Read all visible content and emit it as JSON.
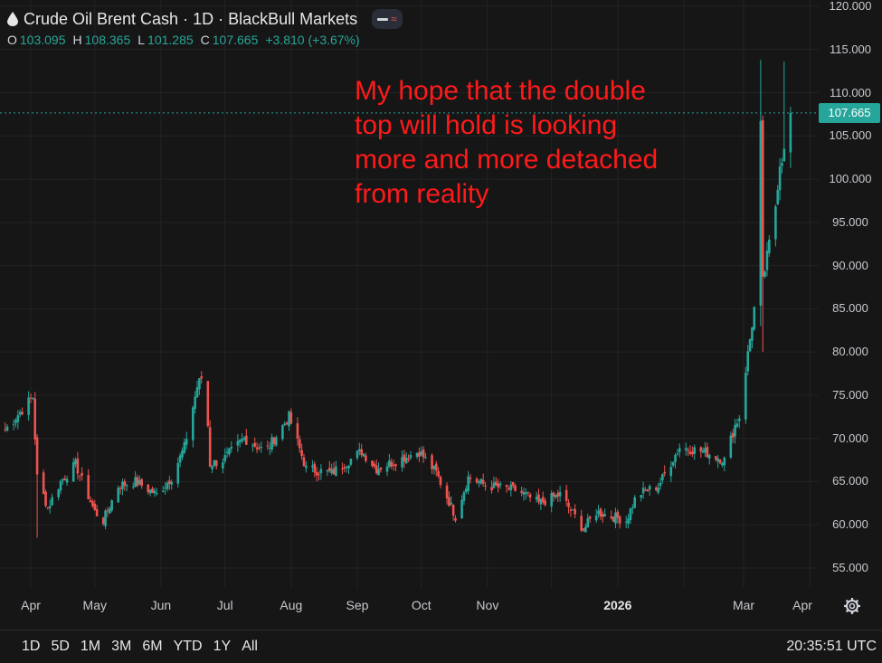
{
  "header": {
    "symbol_title": "Crude Oil Brent Cash · 1D · BlackBull Markets",
    "symbol_icon": "drop-icon",
    "pill_icons": [
      "minus-icon",
      "wave-icon"
    ],
    "ohlc": {
      "o_label": "O",
      "o_value": "103.095",
      "h_label": "H",
      "h_value": "108.365",
      "l_label": "L",
      "l_value": "101.285",
      "c_label": "C",
      "c_value": "107.665",
      "change": "+3.810 (+3.67%)"
    },
    "value_color": "#26a69a"
  },
  "annotation": {
    "lines": [
      "My hope that the double",
      "top will hold is looking",
      "more and more detached",
      "from reality"
    ],
    "color": "#ff1a1a"
  },
  "price_axis": {
    "labels": [
      "120.000",
      "115.000",
      "110.000",
      "105.000",
      "100.000",
      "95.000",
      "90.000",
      "85.000",
      "80.000",
      "75.000",
      "70.000",
      "65.000",
      "60.000",
      "55.000"
    ],
    "last_price": "107.665",
    "last_price_color": "#26a69a"
  },
  "time_axis": {
    "labels": [
      "Apr",
      "May",
      "Jun",
      "Jul",
      "Aug",
      "Sep",
      "Oct",
      "Nov",
      "2026",
      "Mar",
      "Apr"
    ]
  },
  "bottom": {
    "ranges": [
      "1D",
      "5D",
      "1M",
      "3M",
      "6M",
      "YTD",
      "1Y",
      "All"
    ],
    "clock": "20:35:51 UTC",
    "settings_icon": "settings-icon"
  },
  "chart_data": {
    "type": "candlestick",
    "title": "Crude Oil Brent Cash · 1D · BlackBull Markets",
    "ylim": [
      52,
      121
    ],
    "up_color": "#26a69a",
    "down_color": "#ef5350",
    "y_ticks": [
      55,
      60,
      65,
      70,
      75,
      80,
      85,
      90,
      95,
      100,
      105,
      110,
      115,
      120
    ],
    "x_ticks": [
      "Apr",
      "May",
      "Jun",
      "Jul",
      "Aug",
      "Sep",
      "Oct",
      "Nov",
      "2026",
      "Mar",
      "Apr"
    ],
    "anchors_close": [
      [
        "2025-03-20",
        71.0
      ],
      [
        "2025-04-02",
        74.8
      ],
      [
        "2025-04-04",
        65.5
      ],
      [
        "2025-04-09",
        62.0
      ],
      [
        "2025-04-15",
        65.0
      ],
      [
        "2025-04-22",
        67.0
      ],
      [
        "2025-05-01",
        61.5
      ],
      [
        "2025-05-05",
        60.5
      ],
      [
        "2025-05-12",
        64.5
      ],
      [
        "2025-05-20",
        65.0
      ],
      [
        "2025-05-30",
        63.5
      ],
      [
        "2025-06-06",
        65.5
      ],
      [
        "2025-06-12",
        69.0
      ],
      [
        "2025-06-18",
        76.0
      ],
      [
        "2025-06-20",
        77.0
      ],
      [
        "2025-06-23",
        71.5
      ],
      [
        "2025-06-24",
        67.0
      ],
      [
        "2025-06-30",
        67.5
      ],
      [
        "2025-07-10",
        70.0
      ],
      [
        "2025-07-20",
        68.5
      ],
      [
        "2025-07-31",
        72.5
      ],
      [
        "2025-08-08",
        66.5
      ],
      [
        "2025-08-20",
        66.0
      ],
      [
        "2025-09-03",
        68.5
      ],
      [
        "2025-09-10",
        66.5
      ],
      [
        "2025-09-20",
        67.5
      ],
      [
        "2025-09-30",
        68.5
      ],
      [
        "2025-10-08",
        66.0
      ],
      [
        "2025-10-17",
        61.0
      ],
      [
        "2025-10-23",
        65.5
      ],
      [
        "2025-11-01",
        64.5
      ],
      [
        "2025-11-15",
        64.0
      ],
      [
        "2025-11-25",
        62.5
      ],
      [
        "2025-12-05",
        63.5
      ],
      [
        "2025-12-16",
        59.5
      ],
      [
        "2025-12-22",
        61.5
      ],
      [
        "2026-01-05",
        60.5
      ],
      [
        "2026-01-10",
        63.5
      ],
      [
        "2026-01-20",
        64.5
      ],
      [
        "2026-01-30",
        69.0
      ],
      [
        "2026-02-10",
        68.5
      ],
      [
        "2026-02-20",
        67.5
      ],
      [
        "2026-02-25",
        71.5
      ],
      [
        "2026-02-27",
        72.5
      ],
      [
        "2026-03-02",
        78.0
      ],
      [
        "2026-03-06",
        85.0
      ],
      [
        "2026-03-09",
        106.0
      ],
      [
        "2026-03-10",
        88.0
      ],
      [
        "2026-03-12",
        91.0
      ],
      [
        "2026-03-16",
        97.0
      ],
      [
        "2026-03-18",
        102.0
      ],
      [
        "2026-03-20",
        103.1
      ],
      [
        "2026-03-23",
        107.665
      ]
    ],
    "notable_wicks": [
      {
        "date": "2025-04-04",
        "low": 58.5
      },
      {
        "date": "2025-06-20",
        "high": 77.8
      },
      {
        "date": "2026-03-09",
        "high": 113.8,
        "low": 83.0
      },
      {
        "date": "2026-03-10",
        "low": 80.0
      },
      {
        "date": "2026-03-20",
        "high": 113.6
      },
      {
        "date": "2026-03-23",
        "open": 103.095,
        "high": 108.365,
        "low": 101.285,
        "close": 107.665
      }
    ]
  }
}
